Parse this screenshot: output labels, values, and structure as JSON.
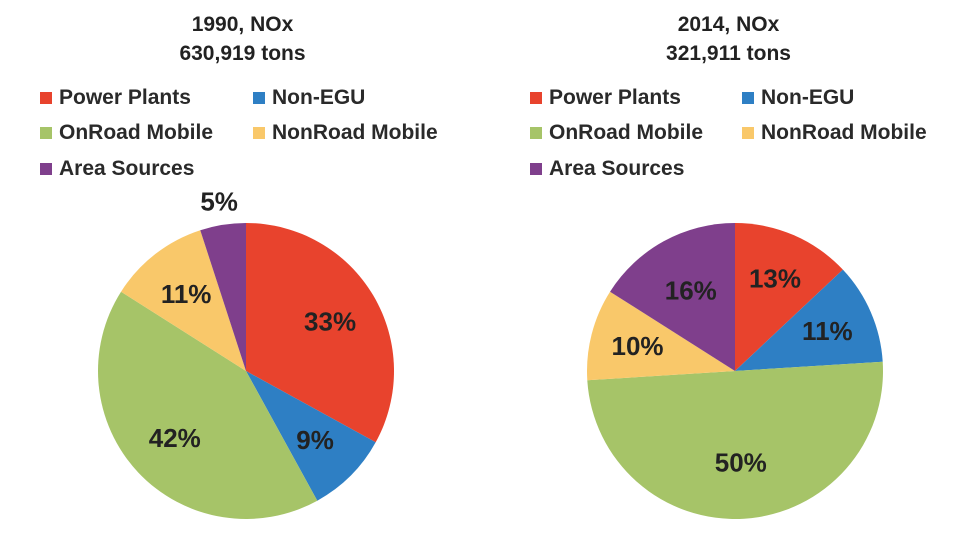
{
  "chart_data": [
    {
      "type": "pie",
      "title": [
        "1990, NOx",
        "630,919 tons"
      ],
      "legend": [
        "Power Plants",
        "Non-EGU",
        "OnRoad Mobile",
        "NonRoad Mobile",
        "Area Sources"
      ],
      "slices": [
        {
          "label": "Power Plants",
          "value": 33,
          "display": "33%",
          "color": "#e8432d"
        },
        {
          "label": "Non-EGU",
          "value": 9,
          "display": "9%",
          "color": "#2e7fc4"
        },
        {
          "label": "OnRoad Mobile",
          "value": 42,
          "display": "42%",
          "color": "#a6c468"
        },
        {
          "label": "NonRoad Mobile",
          "value": 11,
          "display": "11%",
          "color": "#f9c86a"
        },
        {
          "label": "Area Sources",
          "value": 5,
          "display": "5%",
          "color": "#7f3f8c"
        }
      ]
    },
    {
      "type": "pie",
      "title": [
        "2014, NOx",
        "321,911 tons"
      ],
      "legend": [
        "Power Plants",
        "Non-EGU",
        "OnRoad Mobile",
        "NonRoad Mobile",
        "Area Sources"
      ],
      "slices": [
        {
          "label": "Power Plants",
          "value": 13,
          "display": "13%",
          "color": "#e8432d"
        },
        {
          "label": "Non-EGU",
          "value": 11,
          "display": "11%",
          "color": "#2e7fc4"
        },
        {
          "label": "OnRoad Mobile",
          "value": 50,
          "display": "50%",
          "color": "#a6c468"
        },
        {
          "label": "NonRoad Mobile",
          "value": 10,
          "display": "10%",
          "color": "#f9c86a"
        },
        {
          "label": "Area Sources",
          "value": 16,
          "display": "16%",
          "color": "#7f3f8c"
        }
      ]
    }
  ]
}
